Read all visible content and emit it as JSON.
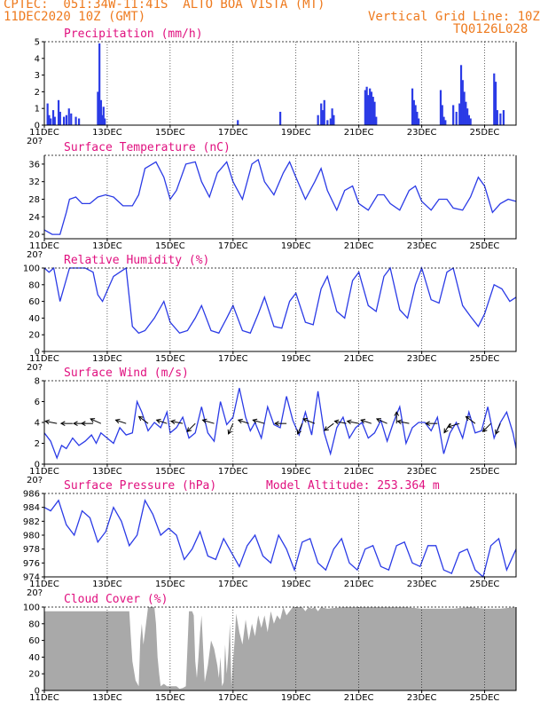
{
  "header": {
    "station": "CPTEC:  051:34W-11:41S  ALTO BOA VISTA (MT)",
    "date": "11DEC2020 10Z (GMT)",
    "grid_note": "Vertical Grid Line: 10Z",
    "code": "TQ0126L028",
    "color": "#ee7a1e"
  },
  "colors": {
    "line": "#2b3be6",
    "title": "#e0107f",
    "cloud": "#a9a9a9",
    "grid": "#000000"
  },
  "x_labels": [
    "11DEC",
    "13DEC",
    "15DEC",
    "17DEC",
    "19DEC",
    "21DEC",
    "23DEC",
    "25DEC"
  ],
  "x_label_cut": "20?",
  "chart_data": [
    {
      "type": "bar",
      "title": "Precipitation (mm/h)",
      "ylim": [
        0,
        5
      ],
      "yticks": [
        0,
        1,
        2,
        3,
        4,
        5
      ],
      "xlim": [
        0,
        15
      ],
      "series": [
        {
          "x": [
            0.1,
            0.15,
            0.2,
            0.28,
            0.33,
            0.45,
            0.5,
            0.62,
            0.7,
            0.78,
            0.85,
            1.0,
            1.1,
            1.7,
            1.75,
            1.8,
            1.84,
            1.88,
            1.92,
            6.15,
            7.5,
            8.7,
            8.8,
            8.85,
            8.9,
            9.0,
            9.1,
            9.15,
            9.2,
            10.2,
            10.25,
            10.3,
            10.35,
            10.4,
            10.45,
            10.5,
            10.55,
            11.7,
            11.75,
            11.8,
            11.85,
            11.9,
            12.6,
            12.65,
            12.7,
            12.75,
            13.0,
            13.1,
            13.2,
            13.25,
            13.3,
            13.35,
            13.4,
            13.45,
            13.5,
            13.55,
            14.3,
            14.35,
            14.4,
            14.5,
            14.6
          ],
          "values": [
            1.3,
            0.6,
            0.4,
            0.9,
            0.5,
            1.5,
            0.8,
            0.5,
            0.6,
            1.0,
            0.7,
            0.5,
            0.4,
            2.0,
            4.9,
            1.5,
            0.6,
            1.1,
            0.4,
            0.3,
            0.8,
            0.6,
            1.3,
            0.9,
            1.5,
            0.3,
            0.4,
            1.0,
            0.6,
            2.1,
            2.3,
            1.8,
            2.2,
            2.0,
            1.7,
            1.4,
            0.5,
            2.2,
            1.5,
            1.2,
            0.8,
            0.4,
            2.1,
            1.2,
            0.5,
            0.3,
            1.2,
            0.8,
            1.3,
            3.6,
            2.7,
            2.0,
            1.4,
            1.0,
            0.6,
            0.4,
            3.1,
            2.6,
            0.9,
            0.7,
            0.9
          ]
        }
      ]
    },
    {
      "type": "line",
      "title": "Surface Temperature (nC)",
      "ylim": [
        19,
        38
      ],
      "yticks": [
        20,
        24,
        28,
        32,
        36
      ],
      "xlim": [
        0,
        15
      ],
      "series": [
        {
          "x": [
            0,
            0.25,
            0.5,
            0.7,
            0.8,
            1.0,
            1.2,
            1.45,
            1.7,
            1.95,
            2.2,
            2.5,
            2.8,
            3.0,
            3.2,
            3.55,
            3.8,
            4.0,
            4.2,
            4.5,
            4.8,
            5.0,
            5.25,
            5.5,
            5.8,
            6.0,
            6.3,
            6.6,
            6.8,
            7.0,
            7.3,
            7.6,
            7.8,
            8.0,
            8.3,
            8.6,
            8.8,
            9.0,
            9.3,
            9.55,
            9.8,
            10.0,
            10.3,
            10.6,
            10.8,
            11.0,
            11.3,
            11.6,
            11.8,
            12.0,
            12.3,
            12.55,
            12.8,
            13.0,
            13.3,
            13.55,
            13.8,
            14.0,
            14.25,
            14.5,
            14.75,
            15.0
          ],
          "values": [
            21,
            20,
            20,
            25,
            28,
            28.5,
            27,
            27,
            28.5,
            29,
            28.5,
            26.5,
            26.5,
            29,
            35,
            36.5,
            33,
            28,
            30,
            36,
            36.5,
            32,
            28.5,
            34,
            36.5,
            32,
            28,
            36,
            37,
            32,
            29,
            34,
            36.5,
            33,
            28,
            32,
            35,
            30,
            25.5,
            30,
            31,
            27,
            25.5,
            29,
            29,
            27,
            25.5,
            30,
            31,
            27.5,
            25.5,
            28,
            28,
            26,
            25.5,
            28.5,
            33,
            31,
            25,
            27,
            28,
            27.5
          ]
        }
      ]
    },
    {
      "type": "line",
      "title": "Relative Humidity (%)",
      "ylim": [
        0,
        100
      ],
      "yticks": [
        0,
        20,
        40,
        60,
        80,
        100
      ],
      "xlim": [
        0,
        15
      ],
      "series": [
        {
          "x": [
            0,
            0.15,
            0.3,
            0.5,
            0.8,
            1.0,
            1.3,
            1.55,
            1.7,
            1.85,
            2.2,
            2.4,
            2.6,
            2.8,
            3.0,
            3.2,
            3.5,
            3.8,
            4.0,
            4.3,
            4.55,
            4.8,
            5.0,
            5.3,
            5.55,
            5.8,
            6.0,
            6.3,
            6.55,
            6.8,
            7.0,
            7.3,
            7.55,
            7.8,
            8.0,
            8.3,
            8.55,
            8.8,
            9.0,
            9.3,
            9.55,
            9.8,
            10.0,
            10.3,
            10.55,
            10.8,
            11.0,
            11.3,
            11.55,
            11.8,
            12.0,
            12.3,
            12.55,
            12.8,
            13.0,
            13.3,
            13.55,
            13.8,
            14.0,
            14.3,
            14.55,
            14.8,
            15.0
          ],
          "values": [
            100,
            95,
            100,
            60,
            100,
            100,
            100,
            95,
            68,
            60,
            90,
            95,
            100,
            30,
            22,
            25,
            40,
            60,
            35,
            22,
            25,
            40,
            55,
            25,
            22,
            40,
            55,
            25,
            22,
            45,
            65,
            30,
            28,
            60,
            70,
            35,
            32,
            75,
            90,
            48,
            40,
            85,
            95,
            55,
            48,
            90,
            100,
            50,
            40,
            80,
            100,
            62,
            58,
            95,
            100,
            55,
            42,
            30,
            45,
            80,
            75,
            60,
            65
          ]
        }
      ]
    },
    {
      "type": "line",
      "title": "Surface Wind (m/s)",
      "ylim": [
        0,
        8
      ],
      "yticks": [
        0,
        2,
        4,
        6,
        8
      ],
      "xlim": [
        0,
        15
      ],
      "series": [
        {
          "x": [
            0,
            0.2,
            0.4,
            0.55,
            0.7,
            0.9,
            1.1,
            1.3,
            1.5,
            1.65,
            1.8,
            2.0,
            2.2,
            2.4,
            2.6,
            2.8,
            2.95,
            3.1,
            3.3,
            3.5,
            3.7,
            3.9,
            4.0,
            4.2,
            4.4,
            4.6,
            4.8,
            5.0,
            5.2,
            5.4,
            5.6,
            5.8,
            6.0,
            6.2,
            6.4,
            6.55,
            6.7,
            6.9,
            7.1,
            7.3,
            7.5,
            7.7,
            7.9,
            8.1,
            8.3,
            8.5,
            8.7,
            8.9,
            9.1,
            9.3,
            9.5,
            9.7,
            9.9,
            10.1,
            10.3,
            10.5,
            10.7,
            10.9,
            11.1,
            11.3,
            11.5,
            11.7,
            11.9,
            12.1,
            12.3,
            12.5,
            12.7,
            12.9,
            13.1,
            13.3,
            13.5,
            13.7,
            13.9,
            14.1,
            14.3,
            14.5,
            14.7,
            14.9,
            15.0
          ],
          "values": [
            3,
            2.2,
            0.6,
            1.8,
            1.5,
            2.5,
            1.8,
            2.2,
            2.8,
            2.0,
            3.0,
            2.5,
            2.0,
            3.5,
            2.8,
            3.0,
            6.0,
            5.0,
            3.2,
            4.0,
            3.5,
            5.0,
            3.0,
            3.5,
            4.5,
            2.5,
            3.0,
            5.5,
            3.0,
            2.2,
            6.0,
            3.8,
            4.5,
            7.3,
            4.5,
            3.2,
            4.0,
            2.5,
            5.5,
            3.8,
            3.5,
            6.5,
            4.2,
            2.8,
            5.0,
            2.8,
            7.0,
            3.0,
            1.0,
            3.5,
            4.5,
            2.5,
            3.5,
            4.0,
            2.5,
            3.0,
            4.2,
            2.2,
            4.0,
            5.5,
            2.0,
            3.5,
            4.0,
            4.0,
            3.2,
            4.5,
            1.0,
            3.0,
            4.0,
            2.5,
            5.0,
            3.0,
            3.2,
            5.5,
            2.5,
            4.0,
            5.0,
            3.0,
            1.5
          ]
        }
      ],
      "arrows": [
        {
          "x": 0.4,
          "u": -1,
          "v": 0.2
        },
        {
          "x": 0.9,
          "u": -1,
          "v": 0
        },
        {
          "x": 1.3,
          "u": -1,
          "v": 0
        },
        {
          "x": 1.55,
          "u": -1,
          "v": 0
        },
        {
          "x": 1.8,
          "u": -0.9,
          "v": 0.4
        },
        {
          "x": 2.6,
          "u": -0.9,
          "v": 0.3
        },
        {
          "x": 3.3,
          "u": -0.8,
          "v": 0.6
        },
        {
          "x": 3.9,
          "u": -0.9,
          "v": 0.3
        },
        {
          "x": 4.4,
          "u": -1,
          "v": 0.2
        },
        {
          "x": 4.8,
          "u": -0.7,
          "v": -0.7
        },
        {
          "x": 5.4,
          "u": -1,
          "v": 0.3
        },
        {
          "x": 6.0,
          "u": -0.4,
          "v": -0.9
        },
        {
          "x": 6.5,
          "u": -0.9,
          "v": 0.3
        },
        {
          "x": 7.0,
          "u": -1,
          "v": 0.3
        },
        {
          "x": 7.7,
          "u": -1,
          "v": 0
        },
        {
          "x": 8.2,
          "u": -0.4,
          "v": -0.9
        },
        {
          "x": 8.6,
          "u": -1,
          "v": 0.4
        },
        {
          "x": 9.2,
          "u": -0.8,
          "v": -0.6
        },
        {
          "x": 9.6,
          "u": -1,
          "v": 0.2
        },
        {
          "x": 10.0,
          "u": -1,
          "v": 0.2
        },
        {
          "x": 10.4,
          "u": -0.9,
          "v": 0.3
        },
        {
          "x": 10.9,
          "u": -0.9,
          "v": 0.4
        },
        {
          "x": 11.2,
          "u": 0,
          "v": 1
        },
        {
          "x": 11.6,
          "u": -1,
          "v": 0.2
        },
        {
          "x": 12.5,
          "u": -1,
          "v": 0
        },
        {
          "x": 12.9,
          "u": -0.5,
          "v": -0.8
        },
        {
          "x": 13.2,
          "u": -1,
          "v": -0.3
        },
        {
          "x": 13.7,
          "u": -0.8,
          "v": 0.6
        },
        {
          "x": 14.2,
          "u": -0.7,
          "v": -0.7
        },
        {
          "x": 14.5,
          "u": -0.4,
          "v": -0.9
        }
      ]
    },
    {
      "type": "line",
      "title": "Surface Pressure (hPa)",
      "annotation": "Model Altitude: 253.364 m",
      "ylim": [
        974,
        986
      ],
      "yticks": [
        974,
        976,
        978,
        980,
        982,
        984,
        986
      ],
      "xlim": [
        0,
        15
      ],
      "series": [
        {
          "x": [
            0,
            0.2,
            0.45,
            0.7,
            0.95,
            1.2,
            1.45,
            1.7,
            1.95,
            2.2,
            2.45,
            2.7,
            2.95,
            3.2,
            3.45,
            3.7,
            3.95,
            4.2,
            4.45,
            4.7,
            4.95,
            5.2,
            5.45,
            5.7,
            5.95,
            6.2,
            6.45,
            6.7,
            6.95,
            7.2,
            7.45,
            7.7,
            7.95,
            8.2,
            8.45,
            8.7,
            8.95,
            9.2,
            9.45,
            9.7,
            9.95,
            10.2,
            10.45,
            10.7,
            10.95,
            11.2,
            11.45,
            11.7,
            11.95,
            12.2,
            12.45,
            12.7,
            12.95,
            13.2,
            13.45,
            13.7,
            13.95,
            14.2,
            14.45,
            14.7,
            15.0
          ],
          "values": [
            984,
            983.5,
            985,
            981.5,
            980,
            983.5,
            982.5,
            979,
            980.5,
            984,
            982,
            978.5,
            980,
            985,
            983,
            980,
            981,
            980,
            976.5,
            978,
            980.5,
            977,
            976.5,
            979.5,
            977.5,
            975.5,
            978.5,
            980,
            977,
            976,
            980,
            978,
            975,
            979,
            979.5,
            976,
            975,
            978,
            979.5,
            976,
            975,
            978,
            978.5,
            975.5,
            975,
            978.5,
            979,
            976,
            975.5,
            978.5,
            978.5,
            975,
            974.5,
            977.5,
            978,
            975,
            974,
            978.5,
            979.5,
            975,
            978
          ]
        }
      ]
    },
    {
      "type": "area",
      "title": "Cloud Cover (%)",
      "ylim": [
        0,
        100
      ],
      "yticks": [
        0,
        20,
        40,
        60,
        80,
        100
      ],
      "xlim": [
        0,
        15
      ],
      "series": [
        {
          "x": [
            0,
            2.7,
            2.75,
            2.8,
            2.9,
            3.0,
            3.05,
            3.1,
            3.15,
            3.2,
            3.3,
            3.5,
            3.55,
            3.6,
            3.65,
            3.7,
            3.8,
            3.9,
            4.0,
            4.2,
            4.3,
            4.4,
            4.5,
            4.6,
            4.7,
            4.75,
            4.8,
            4.85,
            4.9,
            4.95,
            5.0,
            5.1,
            5.2,
            5.3,
            5.4,
            5.5,
            5.55,
            5.6,
            5.65,
            5.7,
            5.75,
            5.8,
            5.85,
            5.9,
            5.95,
            6.0,
            6.05,
            6.1,
            6.2,
            6.3,
            6.4,
            6.5,
            6.6,
            6.7,
            6.8,
            6.9,
            7.0,
            7.1,
            7.2,
            7.3,
            7.4,
            7.5,
            7.6,
            7.7,
            7.8,
            7.9,
            8.0,
            8.2,
            8.3,
            8.4,
            8.5,
            8.6,
            8.7,
            8.8,
            9.0,
            9.5,
            10.0,
            10.5,
            11.0,
            11.5,
            12.0,
            12.5,
            13.0,
            13.5,
            14.0,
            14.5,
            15.0
          ],
          "values": [
            95,
            95,
            65,
            35,
            12,
            5,
            60,
            80,
            55,
            70,
            100,
            100,
            80,
            40,
            20,
            5,
            8,
            5,
            5,
            5,
            2,
            3,
            5,
            95,
            95,
            90,
            35,
            15,
            40,
            70,
            90,
            10,
            30,
            60,
            50,
            30,
            15,
            40,
            5,
            10,
            55,
            20,
            45,
            80,
            5,
            35,
            60,
            92,
            70,
            55,
            85,
            60,
            80,
            65,
            90,
            75,
            90,
            70,
            95,
            80,
            90,
            85,
            100,
            90,
            95,
            100,
            100,
            100,
            95,
            100,
            98,
            100,
            95,
            100,
            98,
            100,
            100,
            100,
            100,
            100,
            98,
            98,
            98,
            100,
            98,
            98,
            100
          ]
        }
      ]
    }
  ]
}
